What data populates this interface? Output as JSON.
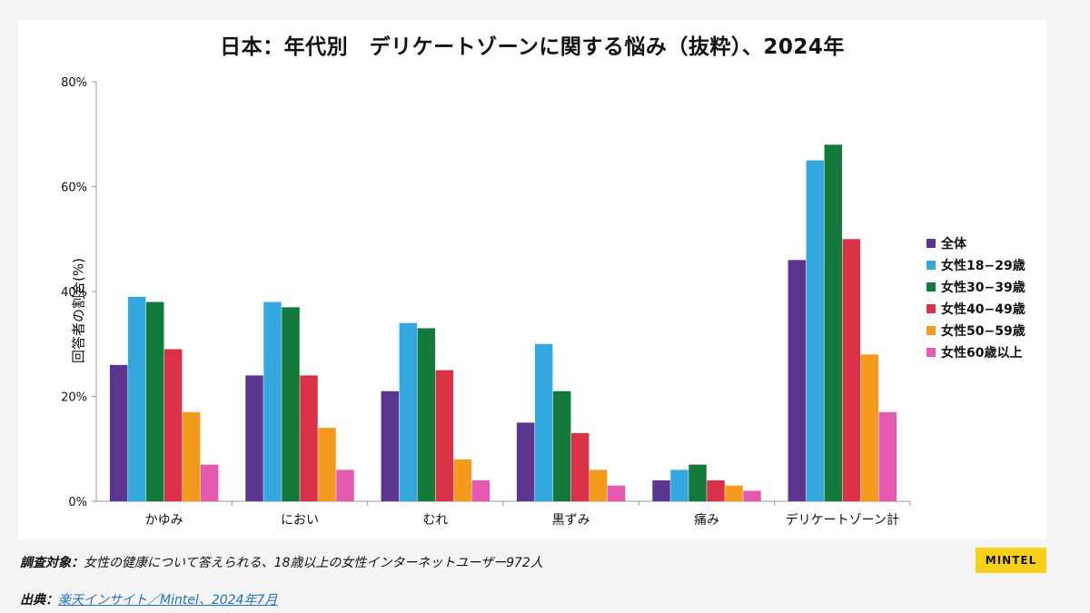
{
  "chart_data": {
    "type": "bar",
    "title": "日本：年代別　デリケートゾーンに関する悩み（抜粋）、2024年",
    "ylabel": "回答者の割合(%)",
    "xlabel": "",
    "ylim": [
      0,
      80
    ],
    "yticks": [
      "0%",
      "20%",
      "40%",
      "60%",
      "80%"
    ],
    "ytick_values": [
      0,
      20,
      40,
      60,
      80
    ],
    "categories": [
      "かゆみ",
      "におい",
      "むれ",
      "黒ずみ",
      "痛み",
      "デリケートゾーン計"
    ],
    "series": [
      {
        "name": "全体",
        "color": "#5b3590",
        "values": [
          26,
          24,
          21,
          15,
          4,
          46
        ]
      },
      {
        "name": "女性18−29歳",
        "color": "#34a8de",
        "values": [
          39,
          38,
          34,
          30,
          6,
          65
        ]
      },
      {
        "name": "女性30−39歳",
        "color": "#137a3c",
        "values": [
          38,
          37,
          33,
          21,
          7,
          68
        ]
      },
      {
        "name": "女性40−49歳",
        "color": "#d93148",
        "values": [
          29,
          24,
          25,
          13,
          4,
          50
        ]
      },
      {
        "name": "女性50−59歳",
        "color": "#f39a1f",
        "values": [
          17,
          14,
          8,
          6,
          3,
          28
        ]
      },
      {
        "name": "女性60歳以上",
        "color": "#e45ab0",
        "values": [
          7,
          6,
          4,
          3,
          2,
          17
        ]
      }
    ],
    "legend_position": "right"
  },
  "footer": {
    "note_label": "調査対象：",
    "note_text": "女性の健康について答えられる、18歳以上の女性インターネットユーザー972人",
    "source_label": "出典：",
    "source_text": "楽天インサイト／Mintel、2024年7月",
    "logo_text": "MINTEL"
  }
}
